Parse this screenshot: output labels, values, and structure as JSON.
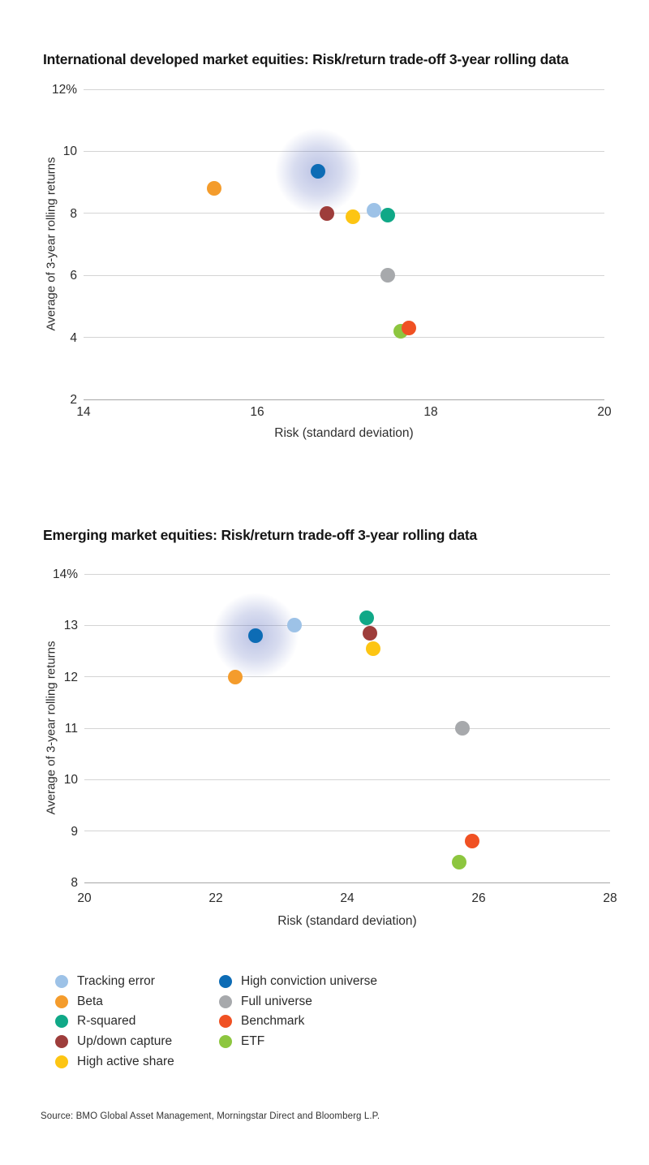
{
  "source_note": "Source: BMO Global Asset Management, Morningstar Direct and Bloomberg L.P.",
  "colors": {
    "grid": "#d4d4d4",
    "axis": "#a6a6a6",
    "halo": "#5c6ebe",
    "text": "#1f1f1f"
  },
  "legend": {
    "columns": [
      {
        "items": [
          {
            "label": "Tracking error",
            "color": "#9DC2E7"
          },
          {
            "label": "Beta",
            "color": "#F49C2C"
          },
          {
            "label": "R-squared",
            "color": "#10A887"
          },
          {
            "label": "Up/down capture",
            "color": "#9E3D3B"
          },
          {
            "label": "High active share",
            "color": "#FDC513"
          }
        ]
      },
      {
        "items": [
          {
            "label": "High conviction universe",
            "color": "#0D6CB5"
          },
          {
            "label": "Full universe",
            "color": "#A7A9AC"
          },
          {
            "label": "Benchmark",
            "color": "#F05123"
          },
          {
            "label": "ETF",
            "color": "#8DC63F"
          }
        ]
      }
    ]
  },
  "chart_data": [
    {
      "type": "scatter",
      "title_bold": "International developed market equities:",
      "title_rest": " Risk/return trade-off 3-year rolling data",
      "xlabel": "Risk (standard deviation)",
      "ylabel": "Average of 3-year rolling returns",
      "xlim": [
        14,
        20
      ],
      "xticks": [
        14,
        16,
        18,
        20
      ],
      "xtick_labels": [
        "14",
        "16",
        "18",
        "20"
      ],
      "ylim": [
        2,
        12
      ],
      "yticks": [
        2,
        4,
        6,
        8,
        10,
        12
      ],
      "ytick_labels": [
        "2",
        "4",
        "6",
        "8",
        "10",
        "12%"
      ],
      "grid": "horizontal",
      "legend_position": "below-shared",
      "points": [
        {
          "series": "Beta",
          "x": 15.5,
          "y": 8.8
        },
        {
          "series": "High conviction universe",
          "x": 16.7,
          "y": 9.35,
          "halo": true
        },
        {
          "series": "Up/down capture",
          "x": 16.8,
          "y": 8.0
        },
        {
          "series": "High active share",
          "x": 17.1,
          "y": 7.9
        },
        {
          "series": "Tracking error",
          "x": 17.35,
          "y": 8.1
        },
        {
          "series": "R-squared",
          "x": 17.5,
          "y": 7.95
        },
        {
          "series": "Full universe",
          "x": 17.5,
          "y": 6.0
        },
        {
          "series": "ETF",
          "x": 17.65,
          "y": 4.2
        },
        {
          "series": "Benchmark",
          "x": 17.75,
          "y": 4.3
        }
      ]
    },
    {
      "type": "scatter",
      "title_bold": "Emerging market equities:",
      "title_rest": " Risk/return trade-off 3-year rolling data",
      "xlabel": "Risk (standard deviation)",
      "ylabel": "Average of 3-year rolling returns",
      "xlim": [
        20,
        28
      ],
      "xticks": [
        20,
        22,
        24,
        26,
        28
      ],
      "xtick_labels": [
        "20",
        "22",
        "24",
        "26",
        "28"
      ],
      "ylim": [
        8,
        14
      ],
      "yticks": [
        8,
        9,
        10,
        11,
        12,
        13,
        14
      ],
      "ytick_labels": [
        "8",
        "9",
        "10",
        "11",
        "12",
        "13",
        "14%"
      ],
      "grid": "horizontal",
      "legend_position": "below-shared",
      "points": [
        {
          "series": "Beta",
          "x": 22.3,
          "y": 12.0
        },
        {
          "series": "High conviction universe",
          "x": 22.6,
          "y": 12.8,
          "halo": true
        },
        {
          "series": "Tracking error",
          "x": 23.2,
          "y": 13.0
        },
        {
          "series": "R-squared",
          "x": 24.3,
          "y": 13.15
        },
        {
          "series": "Up/down capture",
          "x": 24.35,
          "y": 12.85
        },
        {
          "series": "High active share",
          "x": 24.4,
          "y": 12.55
        },
        {
          "series": "Full universe",
          "x": 25.75,
          "y": 11.0
        },
        {
          "series": "ETF",
          "x": 25.7,
          "y": 8.4
        },
        {
          "series": "Benchmark",
          "x": 25.9,
          "y": 8.8
        }
      ]
    }
  ]
}
